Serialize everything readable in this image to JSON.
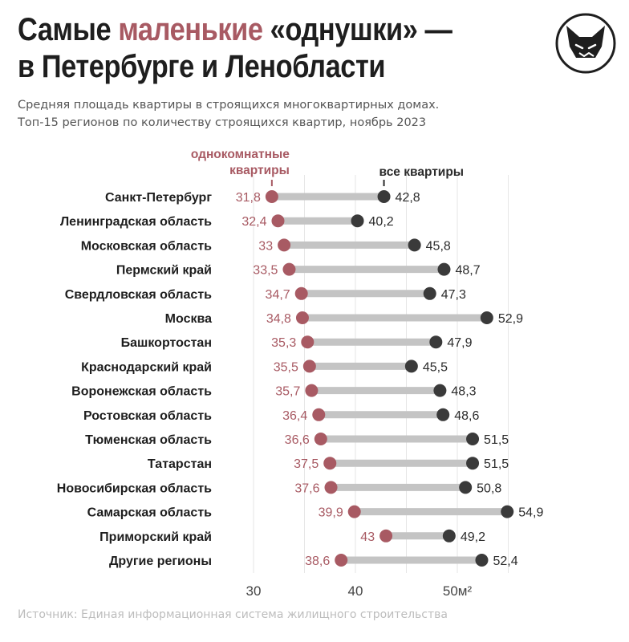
{
  "title": {
    "line1_pre": "Самые ",
    "line1_accent": "маленькие",
    "line1_post": " «однушки» —",
    "line2": "в Петербурге и Ленобласти"
  },
  "subtitle": {
    "line1": "Средняя площадь квартиры в строящихся многоквартирных домах.",
    "line2": "Топ-15 регионов по количеству строящихся квартир, ноябрь 2023"
  },
  "source": "Источник: Единая информационная система жилищного строительства",
  "logo_icon": "fox-mascot-icon",
  "colors": {
    "accent": "#a85a63",
    "dark": "#3a3a3a",
    "bar": "#c4c4c4",
    "label": "#1e1e1e",
    "grid": "#e6e6e6"
  },
  "chart_data": {
    "type": "dumbbell",
    "series": [
      {
        "name": "однокомнатные квартиры",
        "label_lines": [
          "однокомнатные",
          "квартиры"
        ],
        "values": [
          31.8,
          32.4,
          33,
          33.5,
          34.7,
          34.8,
          35.3,
          35.5,
          35.7,
          36.4,
          36.6,
          37.5,
          37.6,
          39.9,
          43,
          38.6
        ],
        "labels": [
          "31,8",
          "32,4",
          "33",
          "33,5",
          "34,7",
          "34,8",
          "35,3",
          "35,5",
          "35,7",
          "36,4",
          "36,6",
          "37,5",
          "37,6",
          "39,9",
          "43",
          "38,6"
        ]
      },
      {
        "name": "все квартиры",
        "label_lines": [
          "все квартиры"
        ],
        "values": [
          42.8,
          40.2,
          45.8,
          48.7,
          47.3,
          52.9,
          47.9,
          45.5,
          48.3,
          48.6,
          51.5,
          51.5,
          50.8,
          54.9,
          49.2,
          52.4
        ],
        "labels": [
          "42,8",
          "40,2",
          "45,8",
          "48,7",
          "47,3",
          "52,9",
          "47,9",
          "45,5",
          "48,3",
          "48,6",
          "51,5",
          "51,5",
          "50,8",
          "54,9",
          "49,2",
          "52,4"
        ]
      }
    ],
    "categories": [
      "Санкт-Петербург",
      "Ленинградская область",
      "Московская область",
      "Пермский край",
      "Свердловская область",
      "Москва",
      "Башкортостан",
      "Краснодарский край",
      "Воронежская область",
      "Ростовская область",
      "Тюменская область",
      "Татарстан",
      "Новосибирская область",
      "Самарская область",
      "Приморский край",
      "Другие регионы"
    ],
    "xlim": [
      26,
      56
    ],
    "xticks": [
      30,
      40,
      50
    ],
    "xtick_labels": [
      "30",
      "40",
      "50м²"
    ],
    "grid": true
  }
}
